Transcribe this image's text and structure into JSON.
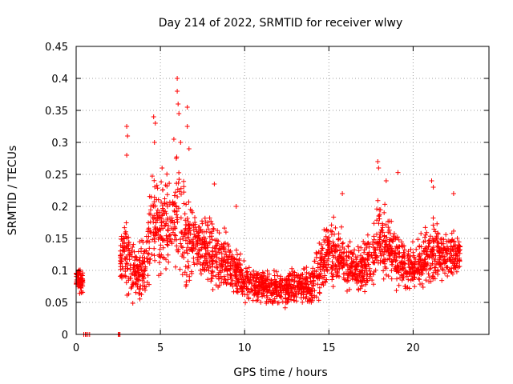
{
  "chart_data": {
    "type": "scatter",
    "title": "Day 214 of 2022, SRMTID for receiver wlwy",
    "xlabel": "GPS time / hours",
    "ylabel": "SRMTID / TECUs",
    "xlim": [
      0,
      24.5
    ],
    "ylim": [
      0,
      0.45
    ],
    "x_ticks": [
      0,
      5,
      10,
      15,
      20
    ],
    "y_ticks": [
      0,
      0.05,
      0.1,
      0.15,
      0.2,
      0.25,
      0.3,
      0.35,
      0.4,
      0.45
    ],
    "grid": true,
    "marker": "+",
    "color": "#ff0000",
    "seed": 214,
    "zero_points_x": [
      0.45,
      0.55,
      0.6,
      0.7,
      0.8,
      2.5,
      2.55,
      2.6
    ],
    "envelope": [
      {
        "x": 0.0,
        "center": 0.09,
        "spread": 0.02
      },
      {
        "x": 0.4,
        "center": 0.08,
        "spread": 0.03
      },
      {
        "x": 2.6,
        "center": 0.12,
        "spread": 0.04
      },
      {
        "x": 3.0,
        "center": 0.13,
        "spread": 0.09
      },
      {
        "x": 3.5,
        "center": 0.09,
        "spread": 0.06
      },
      {
        "x": 4.0,
        "center": 0.1,
        "spread": 0.07
      },
      {
        "x": 4.5,
        "center": 0.17,
        "spread": 0.1
      },
      {
        "x": 5.0,
        "center": 0.16,
        "spread": 0.1
      },
      {
        "x": 5.5,
        "center": 0.17,
        "spread": 0.1
      },
      {
        "x": 6.0,
        "center": 0.19,
        "spread": 0.12
      },
      {
        "x": 6.5,
        "center": 0.16,
        "spread": 0.1
      },
      {
        "x": 7.0,
        "center": 0.14,
        "spread": 0.07
      },
      {
        "x": 8.0,
        "center": 0.13,
        "spread": 0.07
      },
      {
        "x": 9.0,
        "center": 0.11,
        "spread": 0.06
      },
      {
        "x": 10.0,
        "center": 0.08,
        "spread": 0.04
      },
      {
        "x": 11.0,
        "center": 0.075,
        "spread": 0.035
      },
      {
        "x": 12.0,
        "center": 0.07,
        "spread": 0.035
      },
      {
        "x": 13.0,
        "center": 0.075,
        "spread": 0.035
      },
      {
        "x": 14.0,
        "center": 0.075,
        "spread": 0.04
      },
      {
        "x": 15.0,
        "center": 0.13,
        "spread": 0.07
      },
      {
        "x": 16.0,
        "center": 0.11,
        "spread": 0.06
      },
      {
        "x": 17.0,
        "center": 0.1,
        "spread": 0.05
      },
      {
        "x": 18.0,
        "center": 0.15,
        "spread": 0.08
      },
      {
        "x": 19.0,
        "center": 0.12,
        "spread": 0.06
      },
      {
        "x": 20.0,
        "center": 0.1,
        "spread": 0.05
      },
      {
        "x": 21.0,
        "center": 0.13,
        "spread": 0.07
      },
      {
        "x": 22.0,
        "center": 0.12,
        "spread": 0.05
      },
      {
        "x": 22.8,
        "center": 0.13,
        "spread": 0.04
      }
    ],
    "peaks": [
      {
        "x": 3.0,
        "y": 0.325
      },
      {
        "x": 3.05,
        "y": 0.31
      },
      {
        "x": 3.0,
        "y": 0.28
      },
      {
        "x": 4.6,
        "y": 0.34
      },
      {
        "x": 4.65,
        "y": 0.3
      },
      {
        "x": 4.7,
        "y": 0.33
      },
      {
        "x": 5.1,
        "y": 0.26
      },
      {
        "x": 5.8,
        "y": 0.305
      },
      {
        "x": 6.0,
        "y": 0.4
      },
      {
        "x": 6.0,
        "y": 0.38
      },
      {
        "x": 6.05,
        "y": 0.36
      },
      {
        "x": 6.1,
        "y": 0.345
      },
      {
        "x": 6.2,
        "y": 0.3
      },
      {
        "x": 6.6,
        "y": 0.355
      },
      {
        "x": 6.6,
        "y": 0.325
      },
      {
        "x": 6.7,
        "y": 0.29
      },
      {
        "x": 8.2,
        "y": 0.235
      },
      {
        "x": 9.5,
        "y": 0.2
      },
      {
        "x": 15.8,
        "y": 0.22
      },
      {
        "x": 17.9,
        "y": 0.27
      },
      {
        "x": 17.95,
        "y": 0.26
      },
      {
        "x": 18.4,
        "y": 0.24
      },
      {
        "x": 19.1,
        "y": 0.253
      },
      {
        "x": 21.1,
        "y": 0.24
      },
      {
        "x": 21.2,
        "y": 0.23
      },
      {
        "x": 22.4,
        "y": 0.22
      }
    ],
    "n_points": 2300
  }
}
